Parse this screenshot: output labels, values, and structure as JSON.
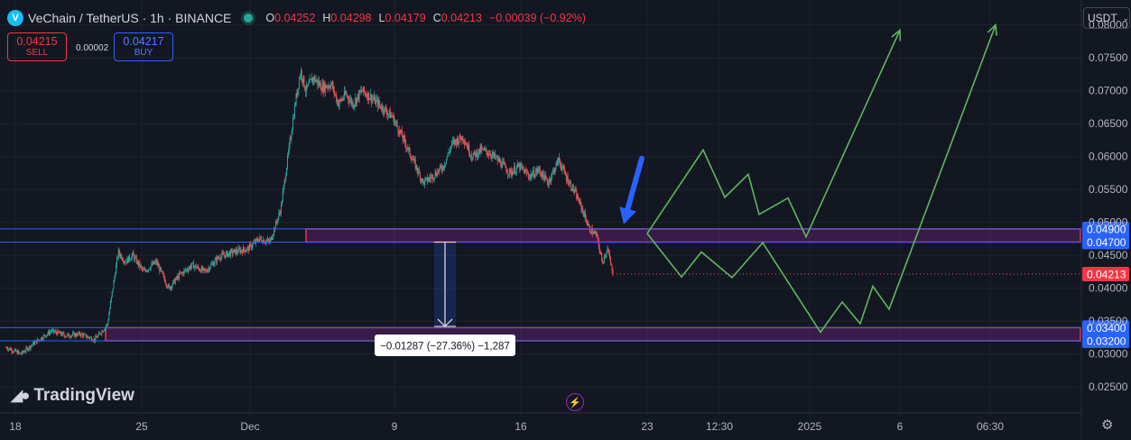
{
  "header": {
    "title": "VeChain / TetherUS · 1h · BINANCE",
    "ohlc": [
      {
        "k": "O",
        "v": "0.04252"
      },
      {
        "k": "H",
        "v": "0.04298"
      },
      {
        "k": "L",
        "v": "0.04179"
      },
      {
        "k": "C",
        "v": "0.04213"
      },
      {
        "k": "",
        "v": "−0.00039 (−0.92%)"
      }
    ]
  },
  "trade": {
    "sell_price": "0.04215",
    "sell_label": "SELL",
    "spread": "0.00002",
    "buy_price": "0.04217",
    "buy_label": "BUY"
  },
  "currency": "USDT",
  "brand": "TradingView",
  "colors": {
    "background": "#131722",
    "up": "#26a69a",
    "down": "#ef5350",
    "zone_border": "#f23645",
    "zone_fill": "#9c27b0",
    "projection": "#5cb85c",
    "arrow": "#2962ff",
    "level_line": "#2962ff"
  },
  "chart_data": {
    "type": "candlestick",
    "symbol": "VETUSDT",
    "timeframe": "1h",
    "y_axis": {
      "min": 0.025,
      "max": 0.082,
      "ticks": [
        "0.08000",
        "0.07500",
        "0.07000",
        "0.06500",
        "0.06000",
        "0.05500",
        "0.05000",
        "0.04500",
        "0.04000",
        "0.03500",
        "0.03000",
        "0.02500"
      ]
    },
    "x_axis": {
      "ticks": [
        {
          "label": "18",
          "t": 0.5
        },
        {
          "label": "25",
          "t": 7.5
        },
        {
          "label": "Dec",
          "t": 13.5
        },
        {
          "label": "9",
          "t": 21.5
        },
        {
          "label": "16",
          "t": 28.5
        },
        {
          "label": "23",
          "t": 35.5
        },
        {
          "label": "12:30",
          "t": 39.5
        },
        {
          "label": "2025",
          "t": 44.5
        },
        {
          "label": "6",
          "t": 49.5
        },
        {
          "label": "06:30",
          "t": 54.5
        }
      ]
    },
    "last_price": "0.04213",
    "price_path_days": [
      [
        0.0,
        0.031
      ],
      [
        0.8,
        0.03
      ],
      [
        1.6,
        0.0318
      ],
      [
        2.5,
        0.0335
      ],
      [
        3.3,
        0.0328
      ],
      [
        4.1,
        0.033
      ],
      [
        4.9,
        0.0322
      ],
      [
        5.6,
        0.0345
      ],
      [
        6.2,
        0.0455
      ],
      [
        6.6,
        0.044
      ],
      [
        7.0,
        0.045
      ],
      [
        7.6,
        0.0425
      ],
      [
        8.3,
        0.044
      ],
      [
        9.0,
        0.04
      ],
      [
        9.6,
        0.042
      ],
      [
        10.3,
        0.0435
      ],
      [
        11.0,
        0.0425
      ],
      [
        11.8,
        0.0448
      ],
      [
        12.6,
        0.0455
      ],
      [
        13.4,
        0.046
      ],
      [
        14.0,
        0.0475
      ],
      [
        14.6,
        0.047
      ],
      [
        15.2,
        0.052
      ],
      [
        15.6,
        0.06
      ],
      [
        16.0,
        0.068
      ],
      [
        16.3,
        0.073
      ],
      [
        16.6,
        0.07
      ],
      [
        17.0,
        0.072
      ],
      [
        17.5,
        0.0705
      ],
      [
        18.0,
        0.071
      ],
      [
        18.4,
        0.068
      ],
      [
        18.8,
        0.0695
      ],
      [
        19.2,
        0.068
      ],
      [
        19.7,
        0.07
      ],
      [
        20.2,
        0.069
      ],
      [
        20.8,
        0.0675
      ],
      [
        21.4,
        0.066
      ],
      [
        22.1,
        0.062
      ],
      [
        22.6,
        0.059
      ],
      [
        23.1,
        0.056
      ],
      [
        23.6,
        0.057
      ],
      [
        24.2,
        0.0585
      ],
      [
        24.7,
        0.062
      ],
      [
        25.3,
        0.063
      ],
      [
        25.8,
        0.06
      ],
      [
        26.3,
        0.061
      ],
      [
        26.8,
        0.0605
      ],
      [
        27.4,
        0.059
      ],
      [
        27.9,
        0.0575
      ],
      [
        28.4,
        0.0585
      ],
      [
        29.0,
        0.057
      ],
      [
        29.5,
        0.058
      ],
      [
        30.0,
        0.056
      ],
      [
        30.6,
        0.0595
      ],
      [
        31.0,
        0.057
      ],
      [
        31.5,
        0.0545
      ],
      [
        31.9,
        0.052
      ],
      [
        32.3,
        0.049
      ],
      [
        32.7,
        0.048
      ],
      [
        33.0,
        0.044
      ],
      [
        33.3,
        0.046
      ],
      [
        33.6,
        0.0421
      ]
    ],
    "zones": [
      {
        "from": 0.047,
        "to": 0.049,
        "start": 16.6,
        "end": 59.5
      },
      {
        "from": 0.032,
        "to": 0.034,
        "start": 5.5,
        "end": 59.5
      }
    ],
    "levels": [
      {
        "price": 0.049,
        "label": "0.04900"
      },
      {
        "price": 0.047,
        "label": "0.04700"
      },
      {
        "price": 0.034,
        "label": "0.03400"
      },
      {
        "price": 0.032,
        "label": "0.03200"
      }
    ],
    "measure": {
      "from": 0.047,
      "to": 0.0342,
      "t": 24.3,
      "label": "−0.01287 (−27.36%) −1,287"
    },
    "projection_upper": [
      [
        35.5,
        0.0483
      ],
      [
        38.6,
        0.061
      ],
      [
        39.8,
        0.0538
      ],
      [
        41.1,
        0.0573
      ],
      [
        41.7,
        0.0512
      ],
      [
        43.3,
        0.0537
      ],
      [
        44.3,
        0.0478
      ],
      [
        49.5,
        0.0792
      ]
    ],
    "projection_lower": [
      [
        35.5,
        0.0483
      ],
      [
        37.4,
        0.0417
      ],
      [
        38.5,
        0.0455
      ],
      [
        40.2,
        0.0416
      ],
      [
        41.9,
        0.0469
      ],
      [
        45.1,
        0.0333
      ],
      [
        46.3,
        0.0379
      ],
      [
        47.3,
        0.0346
      ],
      [
        48.0,
        0.0403
      ],
      [
        48.9,
        0.0368
      ],
      [
        54.8,
        0.08
      ]
    ],
    "signal_arrow": {
      "from": [
        35.2,
        0.0597
      ],
      "to": [
        34.2,
        0.0497
      ]
    }
  }
}
